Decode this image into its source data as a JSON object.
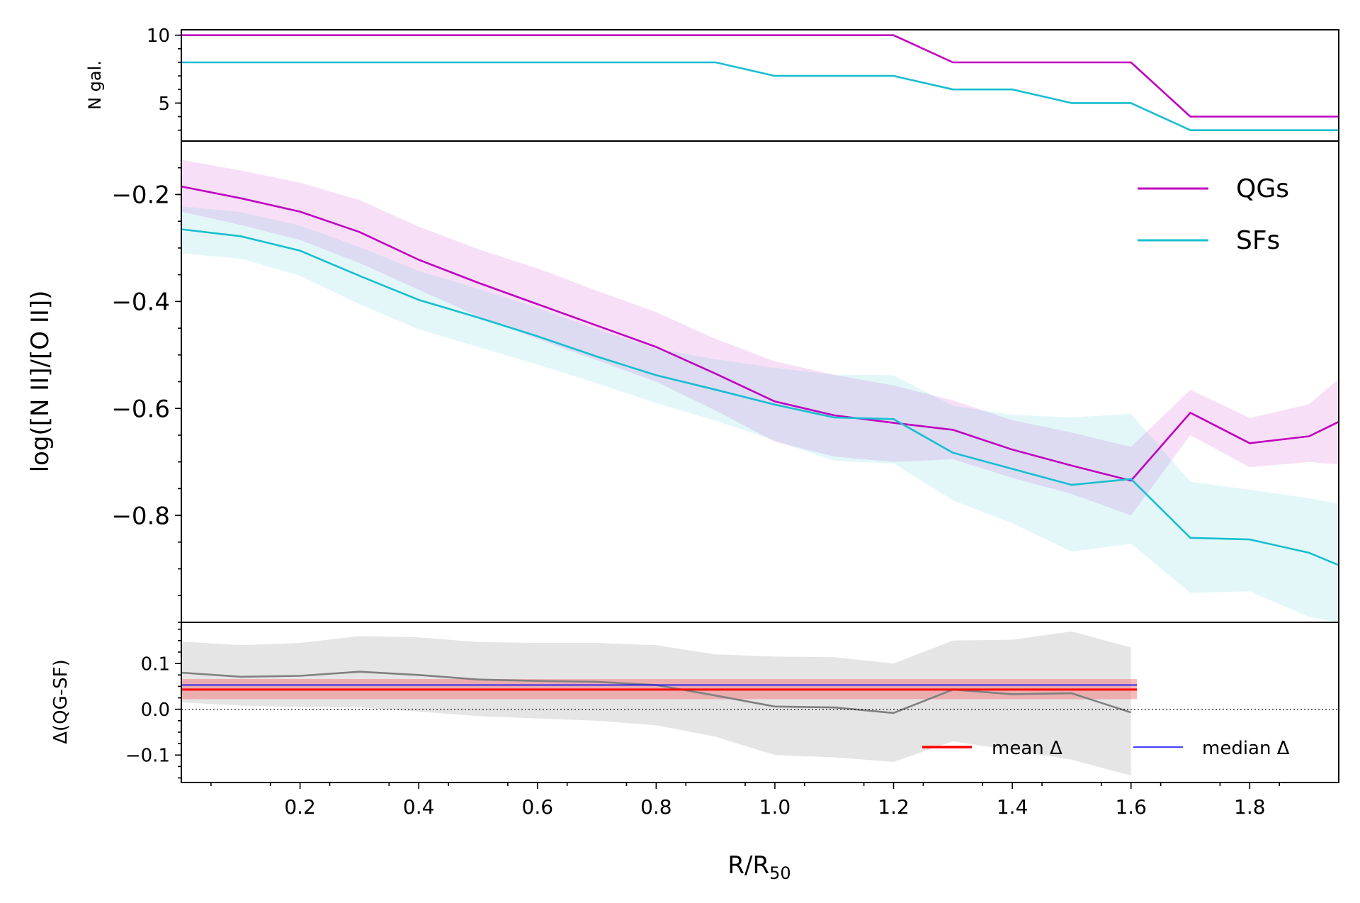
{
  "chart_data": [
    {
      "type": "line",
      "panel": "top",
      "ylabel": "N gal.",
      "ylim": [
        2.2,
        10.4
      ],
      "yticks": [
        5,
        10
      ],
      "xlim": [
        0.0,
        1.95
      ],
      "series": [
        {
          "name": "QGs",
          "color": "#bf00bf",
          "x": [
            0.0,
            0.1,
            0.2,
            0.3,
            0.4,
            0.5,
            0.6,
            0.7,
            0.8,
            0.9,
            1.0,
            1.1,
            1.2,
            1.3,
            1.4,
            1.5,
            1.6,
            1.7,
            1.8,
            1.9,
            1.95
          ],
          "y": [
            10,
            10,
            10,
            10,
            10,
            10,
            10,
            10,
            10,
            10,
            10,
            10,
            10,
            8,
            8,
            8,
            8,
            4,
            4,
            4,
            4
          ]
        },
        {
          "name": "SFs",
          "color": "#17becf",
          "x": [
            0.0,
            0.1,
            0.2,
            0.3,
            0.4,
            0.5,
            0.6,
            0.7,
            0.8,
            0.9,
            1.0,
            1.1,
            1.2,
            1.3,
            1.4,
            1.5,
            1.6,
            1.7,
            1.8,
            1.9,
            1.95
          ],
          "y": [
            8,
            8,
            8,
            8,
            8,
            8,
            8,
            8,
            8,
            8,
            7,
            7,
            7,
            6,
            6,
            5,
            5,
            3,
            3,
            3,
            3
          ]
        }
      ]
    },
    {
      "type": "line",
      "panel": "middle",
      "ylabel": "log([N II]/[O II])",
      "ylim": [
        -1.0,
        -0.1
      ],
      "yticks": [
        -0.2,
        -0.4,
        -0.6,
        -0.8
      ],
      "ytick_labels": [
        "−0.2",
        "−0.4",
        "−0.6",
        "−0.8"
      ],
      "xlim": [
        0.0,
        1.95
      ],
      "legend": {
        "position": "top-right",
        "entries": [
          "QGs",
          "SFs"
        ]
      },
      "series": [
        {
          "name": "QGs",
          "color": "#bf00bf",
          "band_color": "#bf00bf",
          "x": [
            0.0,
            0.1,
            0.2,
            0.3,
            0.4,
            0.5,
            0.6,
            0.7,
            0.8,
            0.9,
            1.0,
            1.1,
            1.2,
            1.3,
            1.4,
            1.5,
            1.6,
            1.7,
            1.8,
            1.9,
            1.95
          ],
          "y": [
            -0.185,
            -0.207,
            -0.232,
            -0.27,
            -0.322,
            -0.365,
            -0.405,
            -0.445,
            -0.485,
            -0.535,
            -0.587,
            -0.613,
            -0.627,
            -0.64,
            -0.677,
            -0.707,
            -0.735,
            -0.608,
            -0.665,
            -0.652,
            -0.625
          ],
          "lower": [
            -0.232,
            -0.257,
            -0.285,
            -0.328,
            -0.378,
            -0.428,
            -0.47,
            -0.51,
            -0.55,
            -0.604,
            -0.662,
            -0.69,
            -0.7,
            -0.695,
            -0.73,
            -0.76,
            -0.8,
            -0.65,
            -0.71,
            -0.7,
            -0.705
          ],
          "upper": [
            -0.135,
            -0.155,
            -0.178,
            -0.21,
            -0.26,
            -0.302,
            -0.338,
            -0.38,
            -0.42,
            -0.47,
            -0.512,
            -0.537,
            -0.557,
            -0.585,
            -0.622,
            -0.645,
            -0.672,
            -0.565,
            -0.618,
            -0.592,
            -0.545
          ]
        },
        {
          "name": "SFs",
          "color": "#17becf",
          "band_color": "#17becf",
          "x": [
            0.0,
            0.1,
            0.2,
            0.3,
            0.4,
            0.5,
            0.6,
            0.7,
            0.8,
            0.9,
            1.0,
            1.1,
            1.2,
            1.3,
            1.4,
            1.5,
            1.6,
            1.7,
            1.8,
            1.9,
            1.95
          ],
          "y": [
            -0.265,
            -0.278,
            -0.305,
            -0.352,
            -0.397,
            -0.43,
            -0.465,
            -0.503,
            -0.538,
            -0.565,
            -0.593,
            -0.617,
            -0.62,
            -0.683,
            -0.713,
            -0.743,
            -0.732,
            -0.842,
            -0.845,
            -0.87,
            -0.893
          ],
          "lower": [
            -0.31,
            -0.32,
            -0.352,
            -0.405,
            -0.452,
            -0.485,
            -0.518,
            -0.553,
            -0.59,
            -0.623,
            -0.66,
            -0.698,
            -0.703,
            -0.772,
            -0.815,
            -0.868,
            -0.853,
            -0.945,
            -0.942,
            -0.99,
            -1.0
          ],
          "upper": [
            -0.222,
            -0.233,
            -0.258,
            -0.298,
            -0.343,
            -0.376,
            -0.412,
            -0.452,
            -0.488,
            -0.508,
            -0.524,
            -0.537,
            -0.538,
            -0.595,
            -0.612,
            -0.617,
            -0.61,
            -0.737,
            -0.752,
            -0.768,
            -0.778
          ]
        }
      ]
    },
    {
      "type": "line",
      "panel": "bottom",
      "ylabel": "Δ(QG-SF)",
      "ylim": [
        -0.16,
        0.19
      ],
      "yticks": [
        0.1,
        0.0,
        -0.1
      ],
      "ytick_labels": [
        "0.1",
        "0.0",
        "−0.1"
      ],
      "xlim": [
        0.0,
        1.95
      ],
      "xlabel": "R/R",
      "xlabel_sub": "50",
      "xticks": [
        0.2,
        0.4,
        0.6,
        0.8,
        1.0,
        1.2,
        1.4,
        1.6,
        1.8
      ],
      "xtick_labels": [
        "0.2",
        "0.4",
        "0.6",
        "0.8",
        "1.0",
        "1.2",
        "1.4",
        "1.6",
        "1.8"
      ],
      "series": [
        {
          "name": "Δ",
          "color": "#808080",
          "band_color": "#cccccc",
          "x": [
            0.0,
            0.1,
            0.2,
            0.3,
            0.4,
            0.5,
            0.6,
            0.7,
            0.8,
            0.9,
            1.0,
            1.1,
            1.2,
            1.3,
            1.4,
            1.5,
            1.6
          ],
          "y": [
            0.08,
            0.071,
            0.073,
            0.082,
            0.075,
            0.065,
            0.062,
            0.06,
            0.053,
            0.03,
            0.006,
            0.004,
            -0.008,
            0.043,
            0.033,
            0.035,
            -0.007
          ],
          "lower": [
            0.015,
            0.008,
            0.005,
            0.004,
            -0.005,
            -0.015,
            -0.02,
            -0.025,
            -0.035,
            -0.06,
            -0.1,
            -0.105,
            -0.115,
            -0.07,
            -0.09,
            -0.11,
            -0.145
          ],
          "upper": [
            0.148,
            0.14,
            0.145,
            0.16,
            0.157,
            0.147,
            0.145,
            0.145,
            0.14,
            0.12,
            0.115,
            0.114,
            0.1,
            0.15,
            0.152,
            0.17,
            0.135
          ]
        }
      ],
      "mean_delta": {
        "value": 0.043,
        "band": [
          0.022,
          0.066
        ],
        "x_range": [
          0.0,
          1.61
        ],
        "color": "#ff0000",
        "band_color": "#f08080"
      },
      "median_delta": {
        "value": 0.053,
        "x_range": [
          0.0,
          1.61
        ],
        "color": "#0000ff"
      },
      "zero_line": {
        "value": 0.0,
        "style": "dotted"
      },
      "legend": {
        "position": "bottom-right",
        "entries": [
          "mean Δ",
          "median Δ"
        ]
      }
    }
  ]
}
